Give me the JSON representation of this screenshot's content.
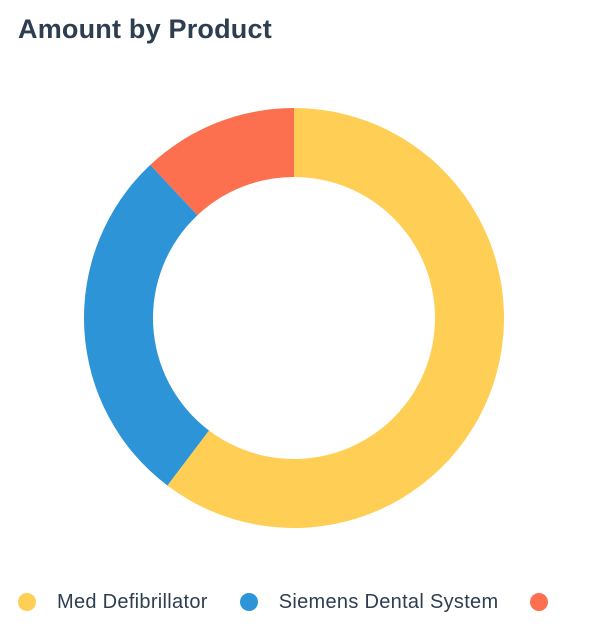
{
  "card": {
    "title": "Amount by Product"
  },
  "colors": {
    "title_text": "#2d3e50",
    "legend_text": "#2d3e50",
    "background": "#ffffff"
  },
  "legend": {
    "items": [
      {
        "label": "Med Defibrillator",
        "color": "#ffce54"
      },
      {
        "label": "Siemens Dental System",
        "color": "#2d94d7"
      },
      {
        "label": "",
        "color": "#fc6f4f"
      }
    ]
  },
  "chart_data": {
    "type": "pie",
    "title": "Amount by Product",
    "donut": true,
    "legend_position": "bottom",
    "start_angle_deg": 0,
    "direction": "clockwise",
    "slices": [
      {
        "name": "Med Defibrillator",
        "value": 60.3,
        "color": "#ffce54"
      },
      {
        "name": "Siemens Dental System",
        "value": 27.7,
        "color": "#2d94d7"
      },
      {
        "name": "",
        "value": 12.0,
        "color": "#fc6f4f"
      }
    ]
  }
}
